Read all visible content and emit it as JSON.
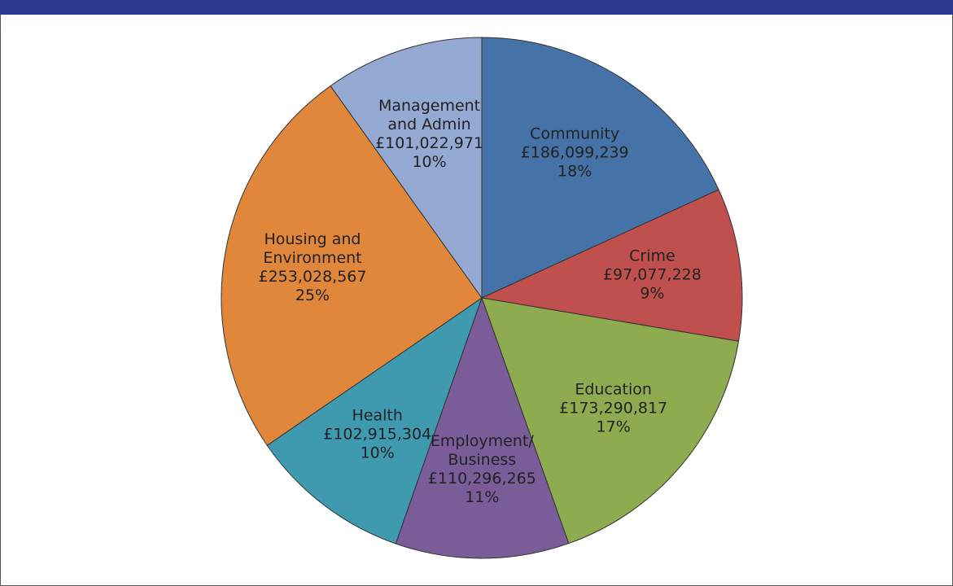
{
  "chart_data": {
    "type": "pie",
    "categories": [
      "Community",
      "Crime",
      "Education",
      "Employment/\nBusiness",
      "Health",
      "Housing and\nEnvironment",
      "Management\nand Admin"
    ],
    "values": [
      186099239,
      97077228,
      173290817,
      110296265,
      102915304,
      253028567,
      101022971
    ],
    "value_labels": [
      "£186,099,239",
      "£97,077,228",
      "£173,290,817",
      "£110,296,265",
      "£102,915,304",
      "£253,028,567",
      "£101,022,971"
    ],
    "percent_labels": [
      "18%",
      "9%",
      "17%",
      "11%",
      "10%",
      "25%",
      "10%"
    ],
    "colors": [
      "#4573a7",
      "#c0504d",
      "#8fab4f",
      "#795c98",
      "#3f9ab0",
      "#e0873b",
      "#94aad3"
    ]
  }
}
